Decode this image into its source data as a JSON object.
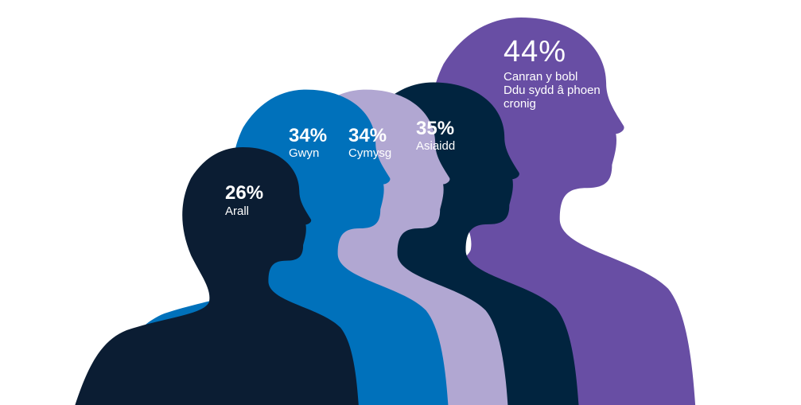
{
  "chart_data": {
    "type": "pictograph",
    "categories": [
      "Arall",
      "Gwyn",
      "Cymysg",
      "Asiaidd",
      "Canran y bobl Ddu sydd â phoen cronig"
    ],
    "values": [
      26,
      34,
      34,
      35,
      44
    ],
    "value_labels": [
      "26%",
      "34%",
      "34%",
      "35%",
      "44%"
    ],
    "colors": [
      "#0b1d33",
      "#0071bb",
      "#b1a7d2",
      "#01243f",
      "#684ea4"
    ]
  }
}
